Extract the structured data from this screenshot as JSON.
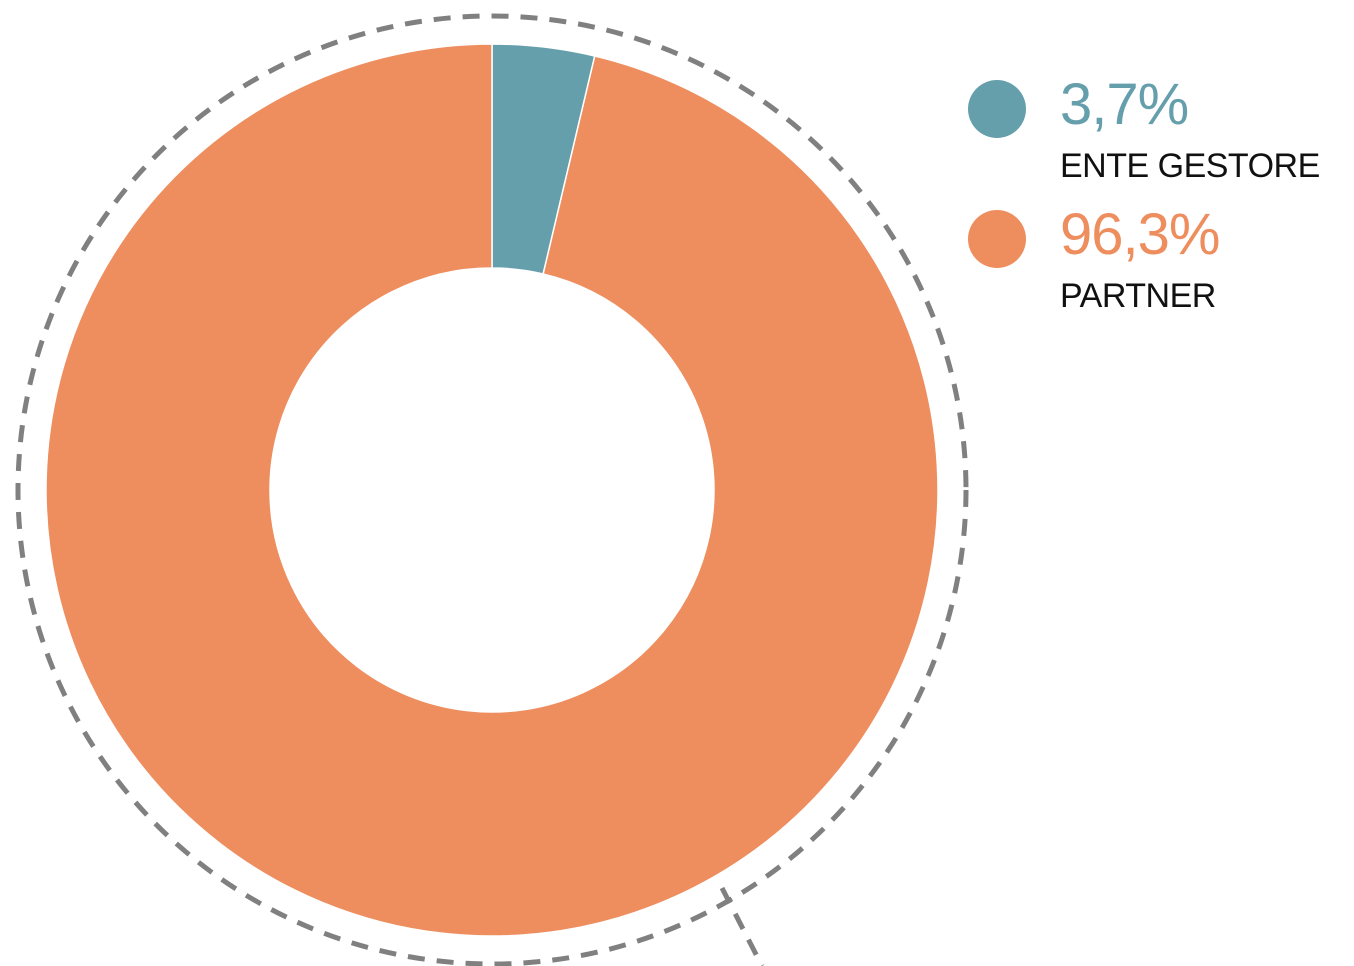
{
  "chart_data": {
    "type": "pie",
    "donut": true,
    "title": "",
    "series": [
      {
        "name": "ENTE GESTORE",
        "label": "3,7%",
        "value": 3.7,
        "color": "#669fac"
      },
      {
        "name": "PARTNER",
        "label": "96,3%",
        "value": 96.3,
        "color": "#ee8d5e"
      }
    ],
    "legend_position": "top-right"
  },
  "colors": {
    "dashed_outline": "#808080",
    "legend_text": "#111111"
  }
}
